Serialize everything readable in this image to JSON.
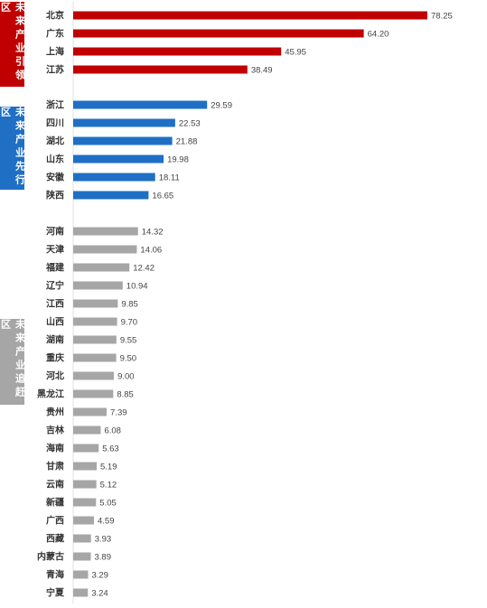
{
  "chart_data": {
    "type": "bar",
    "orientation": "horizontal",
    "title": "",
    "xlabel": "",
    "ylabel": "",
    "xlim": [
      0,
      80
    ],
    "grid": false,
    "groups": [
      {
        "name": "未来产业引领区",
        "color": "#c00000",
        "categories": [
          "北京",
          "广东",
          "上海",
          "江苏"
        ],
        "values": [
          78.25,
          64.2,
          45.95,
          38.49
        ],
        "value_labels": [
          "78.25",
          "64.20",
          "45.95",
          "38.49"
        ]
      },
      {
        "name": "未来产业先行区",
        "color": "#1f6fc5",
        "categories": [
          "浙江",
          "四川",
          "湖北",
          "山东",
          "安徽",
          "陕西"
        ],
        "values": [
          29.59,
          22.53,
          21.88,
          19.98,
          18.11,
          16.65
        ],
        "value_labels": [
          "29.59",
          "22.53",
          "21.88",
          "19.98",
          "18.11",
          "16.65"
        ]
      },
      {
        "name": "未来产业追赶区",
        "color": "#a6a6a6",
        "categories": [
          "河南",
          "天津",
          "福建",
          "辽宁",
          "江西",
          "山西",
          "湖南",
          "重庆",
          "河北",
          "黑龙江",
          "贵州",
          "吉林",
          "海南",
          "甘肃",
          "云南",
          "新疆",
          "广西",
          "西藏",
          "内蒙古",
          "青海",
          "宁夏"
        ],
        "values": [
          14.32,
          14.06,
          12.42,
          10.94,
          9.85,
          9.7,
          9.55,
          9.5,
          9.0,
          8.85,
          7.39,
          6.08,
          5.63,
          5.19,
          5.12,
          5.05,
          4.59,
          3.93,
          3.89,
          3.29,
          3.24
        ],
        "value_labels": [
          "14.32",
          "14.06",
          "12.42",
          "10.94",
          "9.85",
          "9.70",
          "9.55",
          "9.50",
          "9.00",
          "8.85",
          "7.39",
          "6.08",
          "5.63",
          "5.19",
          "5.12",
          "5.05",
          "4.59",
          "3.93",
          "3.89",
          "3.29",
          "3.24"
        ]
      }
    ]
  }
}
